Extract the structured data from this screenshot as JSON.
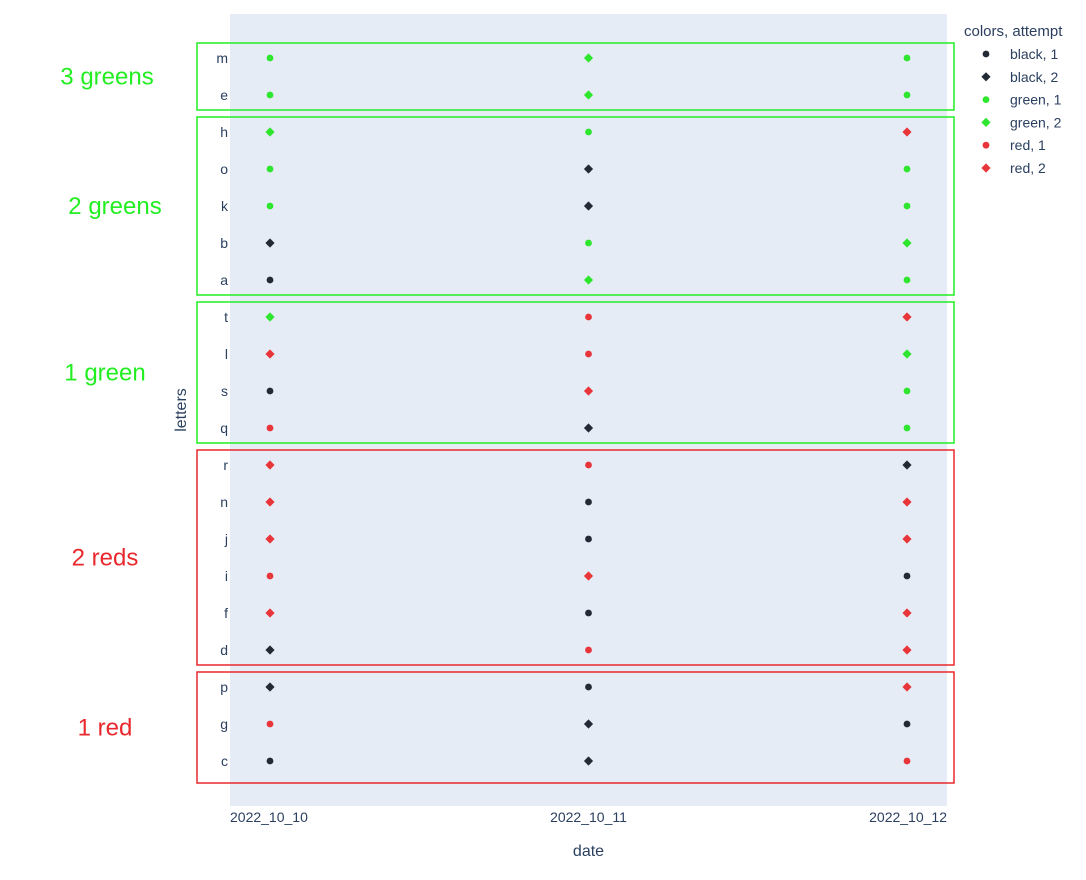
{
  "chart_data": {
    "type": "scatter",
    "xlabel": "date",
    "ylabel": "letters",
    "x_categories": [
      "2022_10_10",
      "2022_10_11",
      "2022_10_12"
    ],
    "y_categories_top_to_bottom": [
      "m",
      "e",
      "h",
      "o",
      "k",
      "b",
      "a",
      "t",
      "l",
      "s",
      "q",
      "r",
      "n",
      "j",
      "i",
      "f",
      "d",
      "p",
      "g",
      "c"
    ],
    "grid": false,
    "plot_background": "#e5ecf6",
    "legend": {
      "title": "colors, attempt",
      "placement": "top-right",
      "entries": [
        {
          "name": "black, 1",
          "color": "#222a35",
          "symbol": "circle"
        },
        {
          "name": "black, 2",
          "color": "#222a35",
          "symbol": "diamond"
        },
        {
          "name": "green, 1",
          "color": "#2ee62e",
          "symbol": "circle"
        },
        {
          "name": "green, 2",
          "color": "#2ee62e",
          "symbol": "diamond"
        },
        {
          "name": "red, 1",
          "color": "#e8353a",
          "symbol": "circle"
        },
        {
          "name": "red, 2",
          "color": "#e8353a",
          "symbol": "diamond"
        }
      ]
    },
    "series": [
      {
        "name": "black, 1",
        "points": [
          {
            "x": "2022_10_10",
            "y": "a"
          },
          {
            "x": "2022_10_10",
            "y": "s"
          },
          {
            "x": "2022_10_10",
            "y": "c"
          },
          {
            "x": "2022_10_11",
            "y": "n"
          },
          {
            "x": "2022_10_11",
            "y": "j"
          },
          {
            "x": "2022_10_11",
            "y": "f"
          },
          {
            "x": "2022_10_11",
            "y": "p"
          },
          {
            "x": "2022_10_12",
            "y": "i"
          },
          {
            "x": "2022_10_12",
            "y": "g"
          }
        ]
      },
      {
        "name": "black, 2",
        "points": [
          {
            "x": "2022_10_10",
            "y": "b"
          },
          {
            "x": "2022_10_10",
            "y": "d"
          },
          {
            "x": "2022_10_10",
            "y": "p"
          },
          {
            "x": "2022_10_11",
            "y": "o"
          },
          {
            "x": "2022_10_11",
            "y": "k"
          },
          {
            "x": "2022_10_11",
            "y": "q"
          },
          {
            "x": "2022_10_11",
            "y": "g"
          },
          {
            "x": "2022_10_11",
            "y": "c"
          },
          {
            "x": "2022_10_12",
            "y": "r"
          }
        ]
      },
      {
        "name": "green, 1",
        "points": [
          {
            "x": "2022_10_10",
            "y": "m"
          },
          {
            "x": "2022_10_10",
            "y": "e"
          },
          {
            "x": "2022_10_10",
            "y": "o"
          },
          {
            "x": "2022_10_10",
            "y": "k"
          },
          {
            "x": "2022_10_11",
            "y": "h"
          },
          {
            "x": "2022_10_11",
            "y": "b"
          },
          {
            "x": "2022_10_12",
            "y": "m"
          },
          {
            "x": "2022_10_12",
            "y": "e"
          },
          {
            "x": "2022_10_12",
            "y": "o"
          },
          {
            "x": "2022_10_12",
            "y": "k"
          },
          {
            "x": "2022_10_12",
            "y": "a"
          },
          {
            "x": "2022_10_12",
            "y": "s"
          },
          {
            "x": "2022_10_12",
            "y": "q"
          }
        ]
      },
      {
        "name": "green, 2",
        "points": [
          {
            "x": "2022_10_10",
            "y": "h"
          },
          {
            "x": "2022_10_10",
            "y": "t"
          },
          {
            "x": "2022_10_11",
            "y": "m"
          },
          {
            "x": "2022_10_11",
            "y": "e"
          },
          {
            "x": "2022_10_11",
            "y": "a"
          },
          {
            "x": "2022_10_12",
            "y": "b"
          },
          {
            "x": "2022_10_12",
            "y": "l"
          }
        ]
      },
      {
        "name": "red, 1",
        "points": [
          {
            "x": "2022_10_10",
            "y": "q"
          },
          {
            "x": "2022_10_10",
            "y": "i"
          },
          {
            "x": "2022_10_10",
            "y": "g"
          },
          {
            "x": "2022_10_11",
            "y": "t"
          },
          {
            "x": "2022_10_11",
            "y": "l"
          },
          {
            "x": "2022_10_11",
            "y": "r"
          },
          {
            "x": "2022_10_11",
            "y": "d"
          },
          {
            "x": "2022_10_12",
            "y": "c"
          }
        ]
      },
      {
        "name": "red, 2",
        "points": [
          {
            "x": "2022_10_10",
            "y": "l"
          },
          {
            "x": "2022_10_10",
            "y": "r"
          },
          {
            "x": "2022_10_10",
            "y": "n"
          },
          {
            "x": "2022_10_10",
            "y": "j"
          },
          {
            "x": "2022_10_10",
            "y": "f"
          },
          {
            "x": "2022_10_11",
            "y": "s"
          },
          {
            "x": "2022_10_11",
            "y": "i"
          },
          {
            "x": "2022_10_12",
            "y": "h"
          },
          {
            "x": "2022_10_12",
            "y": "t"
          },
          {
            "x": "2022_10_12",
            "y": "n"
          },
          {
            "x": "2022_10_12",
            "y": "j"
          },
          {
            "x": "2022_10_12",
            "y": "f"
          },
          {
            "x": "2022_10_12",
            "y": "d"
          },
          {
            "x": "2022_10_12",
            "y": "p"
          }
        ]
      }
    ],
    "annotations": [
      {
        "label": "3 greens",
        "color": "#22ee22",
        "rows": [
          "m",
          "e"
        ]
      },
      {
        "label": "2 greens",
        "color": "#22ee22",
        "rows": [
          "h",
          "o",
          "k",
          "b",
          "a"
        ]
      },
      {
        "label": "1 green",
        "color": "#22ee22",
        "rows": [
          "t",
          "l",
          "s",
          "q"
        ]
      },
      {
        "label": "2 reds",
        "color": "#e8282d",
        "rows": [
          "r",
          "n",
          "j",
          "i",
          "f",
          "d"
        ]
      },
      {
        "label": "1 red",
        "color": "#e8282d",
        "rows": [
          "p",
          "g",
          "c"
        ]
      }
    ]
  }
}
